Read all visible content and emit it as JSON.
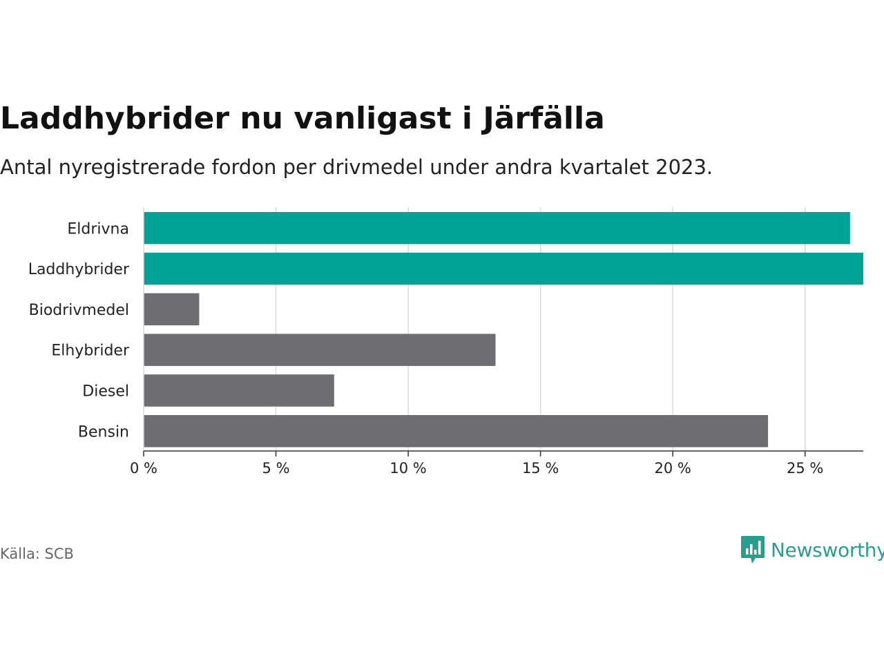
{
  "header": {
    "title": "Laddhybrider nu vanligast i Järfälla",
    "subtitle": "Antal nyregistrerade fordon per drivmedel under andra kvartalet 2023."
  },
  "footer": {
    "source": "Källa: SCB",
    "brand": "Newsworthy"
  },
  "colors": {
    "highlight": "#00a396",
    "default": "#6e6d72",
    "grid": "#d9d9d9",
    "axis": "#333333",
    "brand": "#2a9d8f"
  },
  "chart_data": {
    "type": "bar",
    "orientation": "horizontal",
    "title": "Laddhybrider nu vanligast i Järfälla",
    "subtitle": "Antal nyregistrerade fordon per drivmedel under andra kvartalet 2023.",
    "xlabel": "",
    "ylabel": "",
    "categories": [
      "Eldrivna",
      "Laddhybrider",
      "Biodrivmedel",
      "Elhybrider",
      "Diesel",
      "Bensin"
    ],
    "values": [
      26.7,
      27.2,
      2.1,
      13.3,
      7.2,
      23.6
    ],
    "highlighted": [
      true,
      true,
      false,
      false,
      false,
      false
    ],
    "unit": "%",
    "xlim": [
      0,
      27.2
    ],
    "xticks": [
      0,
      5,
      10,
      15,
      20,
      25
    ],
    "xtick_labels": [
      "0 %",
      "5 %",
      "10 %",
      "15 %",
      "20 %",
      "25 %"
    ],
    "grid": true
  }
}
